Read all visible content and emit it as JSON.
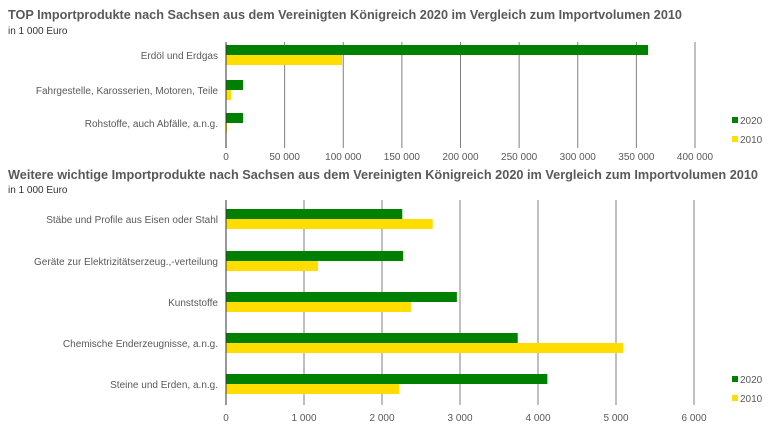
{
  "colors": {
    "2020": "#008000",
    "2010": "#ffdd00",
    "grid": "#7f7f7f"
  },
  "chart_data": [
    {
      "type": "bar",
      "orientation": "horizontal",
      "title": "TOP Importprodukte nach Sachsen aus dem Vereinigten Königreich 2020 im Vergleich zum Importvolumen 2010",
      "subtitle": "in 1 000 Euro",
      "categories": [
        "Erdöl und Erdgas",
        "Fahrgestelle, Karosserien, Motoren, Teile",
        "Rohstoffe, auch Abfälle, a.n.g."
      ],
      "series": [
        {
          "name": "2020",
          "values": [
            360000,
            14500,
            14500
          ]
        },
        {
          "name": "2010",
          "values": [
            99000,
            4300,
            800
          ]
        }
      ],
      "xlim": [
        0,
        400000
      ],
      "ticks": [
        0,
        50000,
        100000,
        150000,
        200000,
        250000,
        300000,
        350000,
        400000
      ],
      "tick_labels": [
        "0",
        "50 000",
        "100 000",
        "150 000",
        "200 000",
        "250 000",
        "300 000",
        "350 000",
        "400 000"
      ],
      "grid": true,
      "legend": "right"
    },
    {
      "type": "bar",
      "orientation": "horizontal",
      "title": "Weitere wichtige Importprodukte nach Sachsen aus dem Vereinigten Königreich 2020 im Vergleich zum Importvolumen 2010",
      "subtitle": "in 1 000 Euro",
      "categories": [
        "Stäbe und Profile aus Eisen oder Stahl",
        "Geräte zur Elektrizitätserzeug.,-verteilung",
        "Kunststoffe",
        "Chemische Enderzeugnisse, a.n.g.",
        "Steine und Erden, a.n.g."
      ],
      "series": [
        {
          "name": "2020",
          "values": [
            2260,
            2270,
            2960,
            3740,
            4120
          ]
        },
        {
          "name": "2010",
          "values": [
            2650,
            1180,
            2370,
            5090,
            2220
          ]
        }
      ],
      "xlim": [
        0,
        6000
      ],
      "ticks": [
        0,
        1000,
        2000,
        3000,
        4000,
        5000,
        6000
      ],
      "tick_labels": [
        "0",
        "1 000",
        "2 000",
        "3 000",
        "4 000",
        "5 000",
        "6 000"
      ],
      "grid": true,
      "legend": "right"
    }
  ]
}
